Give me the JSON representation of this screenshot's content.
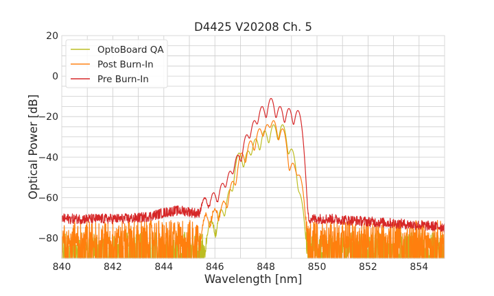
{
  "chart_data": {
    "type": "line",
    "title": "D4425 V20208 Ch. 5",
    "xlabel": "Wavelength [nm]",
    "ylabel": "Optical Power [dB]",
    "xlim": [
      840,
      855
    ],
    "ylim": [
      -90,
      20
    ],
    "xticks": [
      840,
      842,
      844,
      846,
      848,
      850,
      852,
      854
    ],
    "yticks": [
      20,
      0,
      -20,
      -40,
      -60,
      -80
    ],
    "xtick_labels": [
      "840",
      "842",
      "844",
      "846",
      "848",
      "850",
      "852",
      "854"
    ],
    "ytick_labels": [
      "20",
      "0",
      "−20",
      "−40",
      "−60",
      "−80"
    ],
    "grid": true,
    "legend_position": "top-left",
    "series": [
      {
        "name": "OptoBoard QA",
        "color": "#bcbd22",
        "peaks": [
          {
            "x": 845.85,
            "y": -72
          },
          {
            "x": 846.25,
            "y": -66
          },
          {
            "x": 846.6,
            "y": -56
          },
          {
            "x": 846.95,
            "y": -38
          },
          {
            "x": 847.3,
            "y": -37
          },
          {
            "x": 847.6,
            "y": -31
          },
          {
            "x": 847.95,
            "y": -27
          },
          {
            "x": 848.3,
            "y": -24
          },
          {
            "x": 848.65,
            "y": -24
          },
          {
            "x": 849.0,
            "y": -36
          },
          {
            "x": 849.3,
            "y": -58
          }
        ]
      },
      {
        "name": "Post Burn-In",
        "color": "#ff7f0e",
        "peaks": [
          {
            "x": 845.65,
            "y": -69
          },
          {
            "x": 846.0,
            "y": -66
          },
          {
            "x": 846.35,
            "y": -62
          },
          {
            "x": 846.7,
            "y": -52
          },
          {
            "x": 847.05,
            "y": -38
          },
          {
            "x": 847.4,
            "y": -32
          },
          {
            "x": 847.75,
            "y": -26
          },
          {
            "x": 848.05,
            "y": -24
          },
          {
            "x": 848.3,
            "y": -22
          },
          {
            "x": 848.65,
            "y": -26
          },
          {
            "x": 849.05,
            "y": -43
          },
          {
            "x": 849.3,
            "y": -49
          }
        ]
      },
      {
        "name": "Pre Burn-In",
        "color": "#d62728",
        "peaks": [
          {
            "x": 845.6,
            "y": -61
          },
          {
            "x": 845.95,
            "y": -58
          },
          {
            "x": 846.3,
            "y": -53
          },
          {
            "x": 846.6,
            "y": -47
          },
          {
            "x": 846.9,
            "y": -39
          },
          {
            "x": 847.25,
            "y": -29
          },
          {
            "x": 847.55,
            "y": -22
          },
          {
            "x": 847.85,
            "y": -15
          },
          {
            "x": 848.2,
            "y": -11
          },
          {
            "x": 848.55,
            "y": -15
          },
          {
            "x": 848.9,
            "y": -16
          },
          {
            "x": 849.25,
            "y": -17
          }
        ]
      }
    ]
  }
}
